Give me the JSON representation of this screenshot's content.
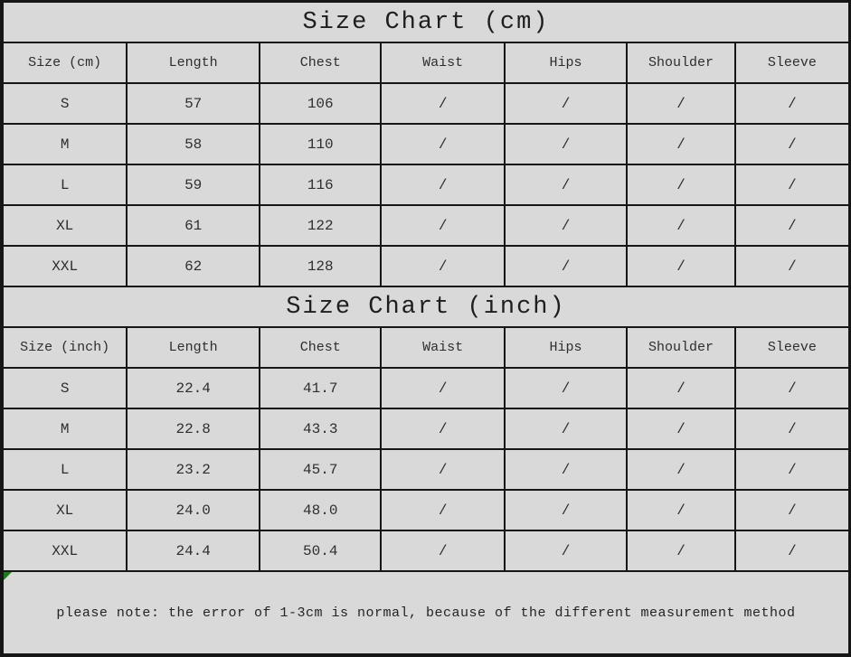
{
  "colors": {
    "background": "#d9d9d9",
    "grid_border": "#161616",
    "text": "#2e2e2e",
    "slash_muted": "#8a8a8a",
    "corner_marker_green": "#1f7a1f"
  },
  "chart_data": [
    {
      "type": "table",
      "title": "Size Chart (cm)",
      "columns": [
        "Size (cm)",
        "Length",
        "Chest",
        "Waist",
        "Hips",
        "Shoulder",
        "Sleeve"
      ],
      "rows": [
        [
          "S",
          "57",
          "106",
          "/",
          "/",
          "/",
          "/"
        ],
        [
          "M",
          "58",
          "110",
          "/",
          "/",
          "/",
          "/"
        ],
        [
          "L",
          "59",
          "116",
          "/",
          "/",
          "/",
          "/"
        ],
        [
          "XL",
          "61",
          "122",
          "/",
          "/",
          "/",
          "/"
        ],
        [
          "XXL",
          "62",
          "128",
          "/",
          "/",
          "/",
          "/"
        ]
      ]
    },
    {
      "type": "table",
      "title": "Size Chart (inch)",
      "columns": [
        "Size (inch)",
        "Length",
        "Chest",
        "Waist",
        "Hips",
        "Shoulder",
        "Sleeve"
      ],
      "rows": [
        [
          "S",
          "22.4",
          "41.7",
          "/",
          "/",
          "/",
          "/"
        ],
        [
          "M",
          "22.8",
          "43.3",
          "/",
          "/",
          "/",
          "/"
        ],
        [
          "L",
          "23.2",
          "45.7",
          "/",
          "/",
          "/",
          "/"
        ],
        [
          "XL",
          "24.0",
          "48.0",
          "/",
          "/",
          "/",
          "/"
        ],
        [
          "XXL",
          "24.4",
          "50.4",
          "/",
          "/",
          "/",
          "/"
        ]
      ]
    }
  ],
  "note": {
    "text": "please note: the error of 1-3cm is normal, because of the different measurement method"
  }
}
